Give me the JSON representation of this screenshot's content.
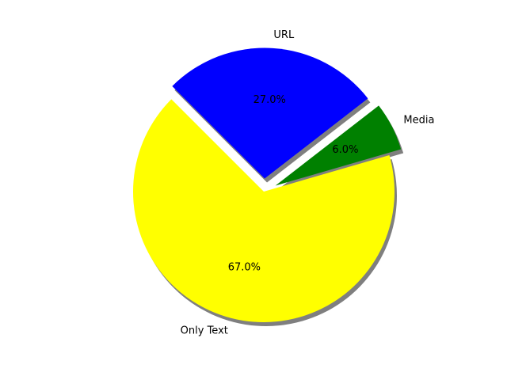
{
  "chart_data": {
    "type": "pie",
    "title": "",
    "shadow": true,
    "start_angle_deg": 135,
    "direction": "counterclockwise",
    "slices": [
      {
        "label": "Only Text",
        "value": 67.0,
        "pct_text": "67.0%",
        "color": "#ffff00",
        "exploded": false
      },
      {
        "label": "Media",
        "value": 6.0,
        "pct_text": "6.0%",
        "color": "#008000",
        "exploded": true
      },
      {
        "label": "URL",
        "value": 27.0,
        "pct_text": "27.0%",
        "color": "#0000ff",
        "exploded": true
      }
    ]
  }
}
